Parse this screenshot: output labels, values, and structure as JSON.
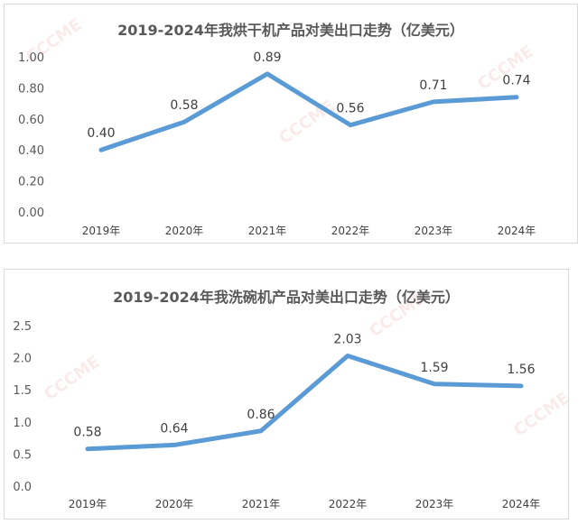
{
  "watermark": "CCCME",
  "chart_data": [
    {
      "type": "line",
      "title": "2019-2024年我烘干机产品对美出口走势（亿美元）",
      "categories": [
        "2019年",
        "2020年",
        "2021年",
        "2022年",
        "2023年",
        "2024年"
      ],
      "values": [
        0.4,
        0.58,
        0.89,
        0.56,
        0.71,
        0.74
      ],
      "data_labels": [
        "0.40",
        "0.58",
        "0.89",
        "0.56",
        "0.71",
        "0.74"
      ],
      "yticks": [
        "0.00",
        "0.20",
        "0.40",
        "0.60",
        "0.80",
        "1.00"
      ],
      "ylim": [
        0,
        1.0
      ],
      "line_color": "#5b9bd5",
      "grid": false,
      "legend": "none"
    },
    {
      "type": "line",
      "title": "2019-2024年我洗碗机产品对美出口走势（亿美元）",
      "categories": [
        "2019年",
        "2020年",
        "2021年",
        "2022年",
        "2023年",
        "2024年"
      ],
      "values": [
        0.58,
        0.64,
        0.86,
        2.03,
        1.59,
        1.56
      ],
      "data_labels": [
        "0.58",
        "0.64",
        "0.86",
        "2.03",
        "1.59",
        "1.56"
      ],
      "yticks": [
        "0.0",
        "0.5",
        "1.0",
        "1.5",
        "2.0",
        "2.5"
      ],
      "ylim": [
        0,
        2.5
      ],
      "line_color": "#5b9bd5",
      "grid": false,
      "legend": "none"
    }
  ]
}
